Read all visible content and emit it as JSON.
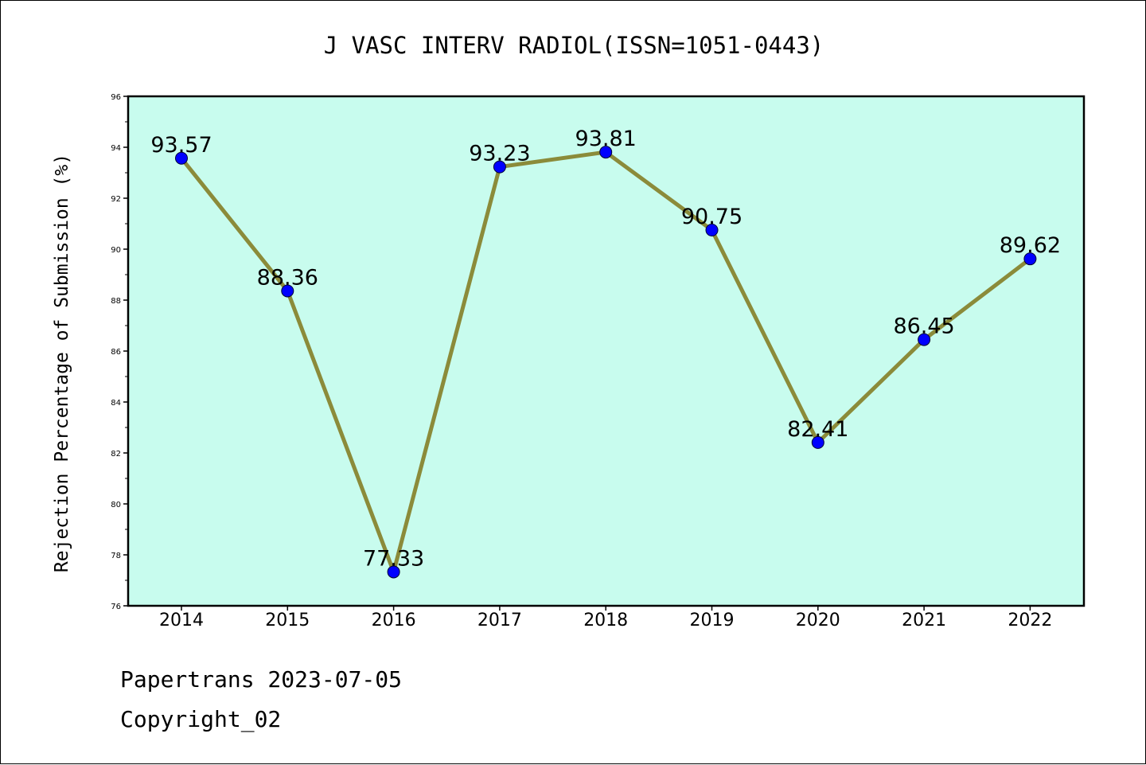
{
  "chart_data": {
    "type": "line",
    "title": "J VASC INTERV RADIOL(ISSN=1051-0443)",
    "xlabel": "",
    "ylabel": "Rejection Percentage of Submission (%)",
    "categories": [
      "2014",
      "2015",
      "2016",
      "2017",
      "2018",
      "2019",
      "2020",
      "2021",
      "2022"
    ],
    "values": [
      93.57,
      88.36,
      77.33,
      93.23,
      93.81,
      90.75,
      82.41,
      86.45,
      89.62
    ],
    "data_labels": [
      "93.57",
      "88.36",
      "77.33",
      "93.23",
      "93.81",
      "90.75",
      "82.41",
      "86.45",
      "89.62"
    ],
    "ylim": [
      76,
      96
    ],
    "yticks": [
      "76",
      "78",
      "80",
      "82",
      "84",
      "86",
      "88",
      "90",
      "92",
      "94",
      "96"
    ],
    "grid": false,
    "legend": "none",
    "colors": {
      "plot_background": "#c8fcee",
      "line": "#8b8b3a",
      "marker": "#0000ff",
      "axis": "#000000"
    }
  },
  "footer": {
    "line1": "Papertrans 2023-07-05",
    "line2": "Copyright_02"
  }
}
